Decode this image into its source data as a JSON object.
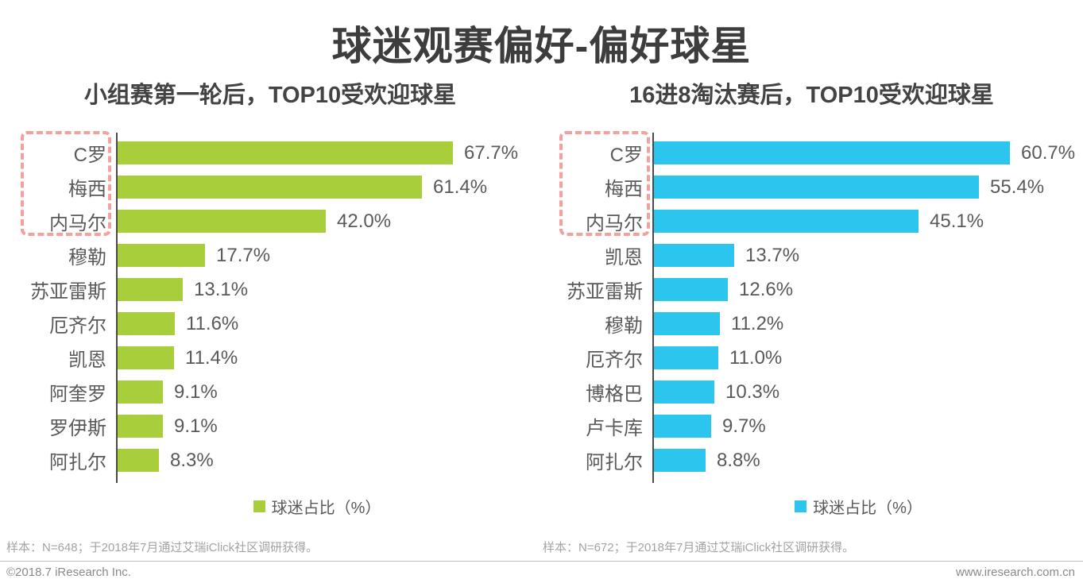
{
  "title": "球迷观赛偏好-偏好球星",
  "accent_colors": {
    "green": "#a9ce3b",
    "blue": "#2bc5ed",
    "highlight_dashed": "#f2a19e",
    "axis": "#4a4a4a"
  },
  "chart_data": [
    {
      "type": "bar",
      "orientation": "horizontal",
      "title": "小组赛第一轮后，TOP10受欢迎球星",
      "legend": "球迷占比（%）",
      "bar_color": "#a9ce3b",
      "note": "样本：N=648；于2018年7月通过艾瑞iClick社区调研获得。",
      "categories": [
        "C罗",
        "梅西",
        "内马尔",
        "穆勒",
        "苏亚雷斯",
        "厄齐尔",
        "凯恩",
        "阿奎罗",
        "罗伊斯",
        "阿扎尔"
      ],
      "values": [
        67.7,
        61.4,
        42.0,
        17.7,
        13.1,
        11.6,
        11.4,
        9.1,
        9.1,
        8.3
      ],
      "value_labels": [
        "67.7%",
        "61.4%",
        "42.0%",
        "17.7%",
        "13.1%",
        "11.6%",
        "11.4%",
        "9.1%",
        "9.1%",
        "8.3%"
      ],
      "highlight_top": 3,
      "xlim": [
        0,
        70
      ],
      "grid": false,
      "legend_position": "bottom"
    },
    {
      "type": "bar",
      "orientation": "horizontal",
      "title": "16进8淘汰赛后，TOP10受欢迎球星",
      "legend": "球迷占比（%）",
      "bar_color": "#2bc5ed",
      "note": "样本：N=672；于2018年7月通过艾瑞iClick社区调研获得。",
      "categories": [
        "C罗",
        "梅西",
        "内马尔",
        "凯恩",
        "苏亚雷斯",
        "穆勒",
        "厄齐尔",
        "博格巴",
        "卢卡库",
        "阿扎尔"
      ],
      "values": [
        60.7,
        55.4,
        45.1,
        13.7,
        12.6,
        11.2,
        11.0,
        10.3,
        9.7,
        8.8
      ],
      "value_labels": [
        "60.7%",
        "55.4%",
        "45.1%",
        "13.7%",
        "12.6%",
        "11.2%",
        "11.0%",
        "10.3%",
        "9.7%",
        "8.8%"
      ],
      "highlight_top": 3,
      "xlim": [
        0,
        62
      ],
      "grid": false,
      "legend_position": "bottom"
    }
  ],
  "footer": {
    "left": "©2018.7 iResearch Inc.",
    "right": "www.iresearch.com.cn"
  }
}
